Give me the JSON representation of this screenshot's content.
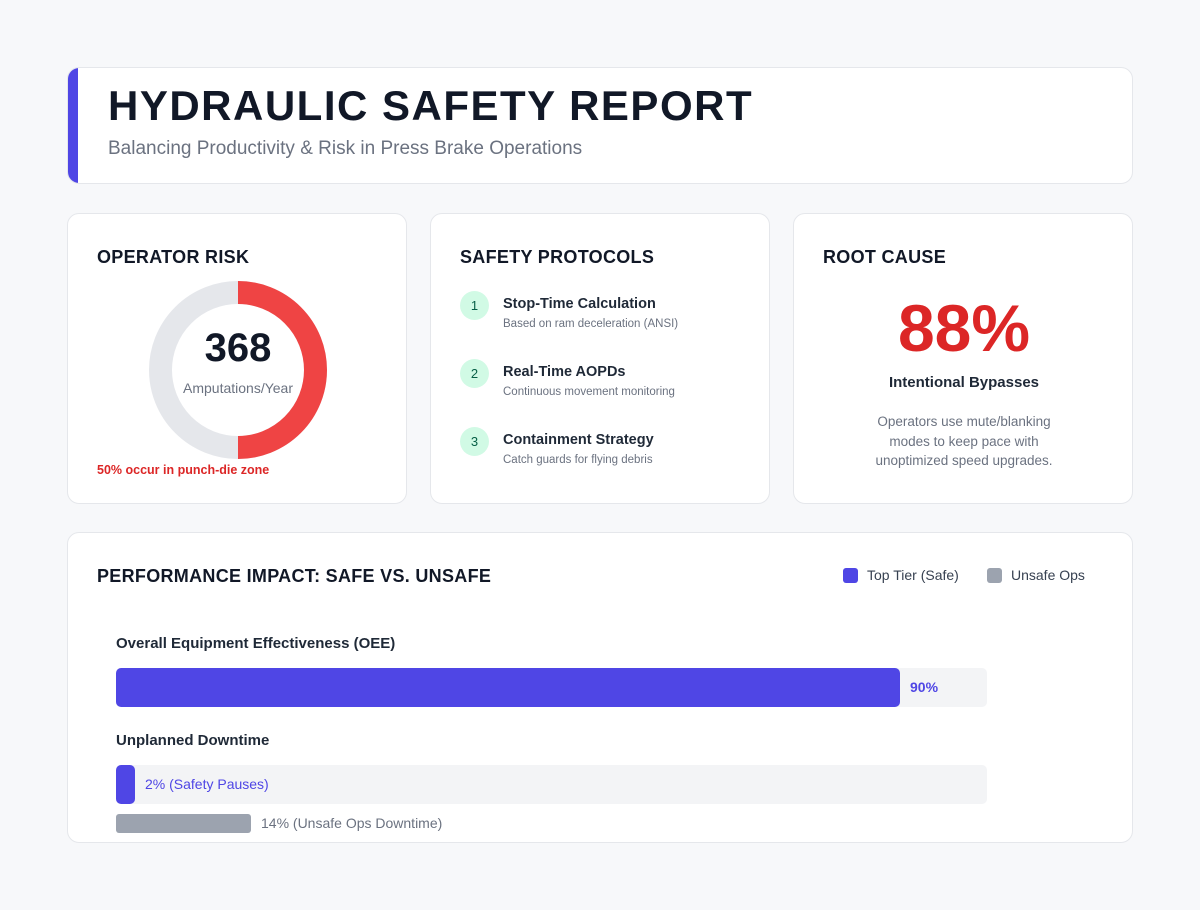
{
  "header": {
    "title": "HYDRAULIC SAFETY REPORT",
    "subtitle": "Balancing Productivity & Risk in Press Brake Operations"
  },
  "operator_risk": {
    "title": "OPERATOR RISK",
    "value": "368",
    "label": "Amputations/Year",
    "note": "50% occur in punch-die zone",
    "share": 0.5,
    "colors": {
      "highlight": "#ef4444",
      "remainder": "#e5e7eb"
    }
  },
  "safety_protocols": {
    "title": "SAFETY PROTOCOLS",
    "steps": [
      {
        "number": "1",
        "title": "Stop-Time Calculation",
        "description": "Based on ram deceleration (ANSI)"
      },
      {
        "number": "2",
        "title": "Real-Time AOPDs",
        "description": "Continuous movement monitoring"
      },
      {
        "number": "3",
        "title": "Containment Strategy",
        "description": "Catch guards for flying debris"
      }
    ]
  },
  "root_cause": {
    "title": "ROOT CAUSE",
    "value": "88%",
    "label": "Intentional Bypasses",
    "description": "Operators use mute/blanking modes to keep pace with unoptimized speed upgrades."
  },
  "performance": {
    "title": "PERFORMANCE IMPACT: SAFE VS. UNSAFE",
    "legend": [
      {
        "label": "Top Tier (Safe)",
        "color": "#4f46e5"
      },
      {
        "label": "Unsafe Ops",
        "color": "#9ca3af"
      }
    ]
  },
  "chart_data": {
    "type": "bar",
    "title": "PERFORMANCE IMPACT: SAFE VS. UNSAFE",
    "orientation": "horizontal",
    "xlim": [
      0,
      100
    ],
    "categories": [
      "Overall Equipment Effectiveness (OEE)",
      "Unplanned Downtime"
    ],
    "series": [
      {
        "name": "Top Tier (Safe)",
        "color": "#4f46e5",
        "values": [
          90,
          2
        ],
        "labels": [
          "90%",
          "2% (Safety Pauses)"
        ]
      },
      {
        "name": "Unsafe Ops",
        "color": "#9ca3af",
        "values": [
          null,
          14
        ],
        "labels": [
          null,
          "14% (Unsafe Ops Downtime)"
        ]
      }
    ]
  }
}
